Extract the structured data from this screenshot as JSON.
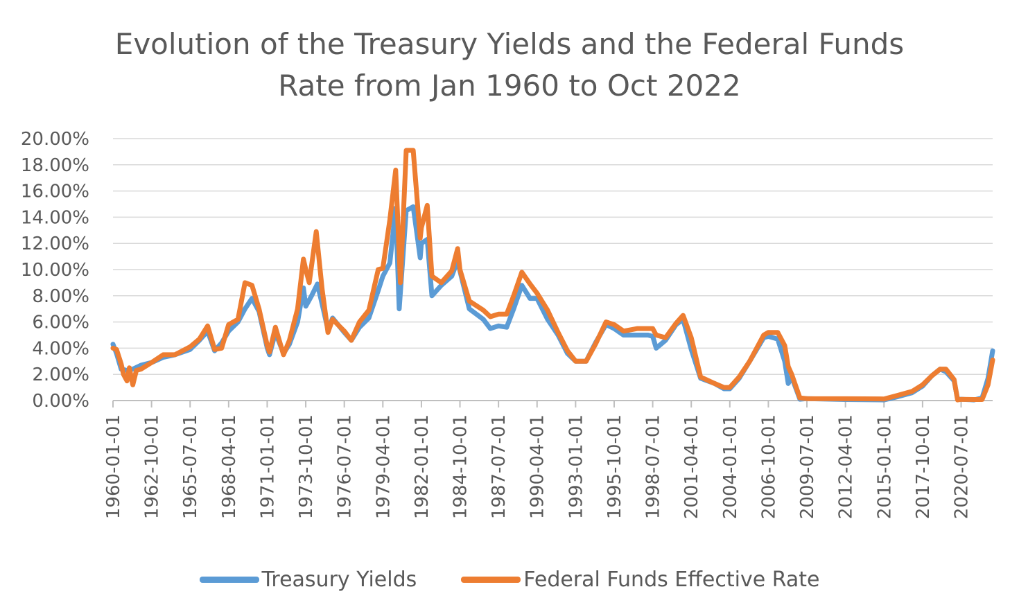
{
  "chart_data": {
    "type": "line",
    "title": "Evolution of the Treasury Yields and the Federal Funds Rate from Jan 1960 to Oct 2022",
    "title_lines": [
      "Evolution of the Treasury Yields and the Federal Funds",
      "Rate from Jan 1960 to Oct 2022"
    ],
    "xlabel": "",
    "ylabel": "",
    "ylim": [
      0,
      20
    ],
    "y_tick_labels": [
      "0.00%",
      "2.00%",
      "4.00%",
      "6.00%",
      "8.00%",
      "10.00%",
      "12.00%",
      "14.00%",
      "16.00%",
      "18.00%",
      "20.00%"
    ],
    "x_tick_labels": [
      "1960-01-01",
      "1962-10-01",
      "1965-07-01",
      "1968-04-01",
      "1971-01-01",
      "1973-10-01",
      "1976-07-01",
      "1979-04-01",
      "1982-01-01",
      "1984-10-01",
      "1987-07-01",
      "1990-04-01",
      "1993-01-01",
      "1995-10-01",
      "1998-07-01",
      "2001-04-01",
      "2004-01-01",
      "2006-10-01",
      "2009-07-01",
      "2012-04-01",
      "2015-01-01",
      "2017-10-01",
      "2020-07-01"
    ],
    "x_range": [
      "1960-01-01",
      "2022-10-01"
    ],
    "grid": "horizontal",
    "legend_position": "bottom",
    "series": [
      {
        "name": "Treasury Yields",
        "color": "#5B9BD5",
        "points": [
          [
            "1960-01-01",
            4.3
          ],
          [
            "1960-04-01",
            3.6
          ],
          [
            "1960-08-01",
            2.4
          ],
          [
            "1961-01-01",
            2.3
          ],
          [
            "1961-06-01",
            2.4
          ],
          [
            "1962-01-01",
            2.7
          ],
          [
            "1962-10-01",
            2.9
          ],
          [
            "1963-08-01",
            3.3
          ],
          [
            "1964-06-01",
            3.5
          ],
          [
            "1965-07-01",
            3.9
          ],
          [
            "1966-03-01",
            4.6
          ],
          [
            "1966-10-01",
            5.3
          ],
          [
            "1967-04-01",
            3.8
          ],
          [
            "1967-10-01",
            4.4
          ],
          [
            "1968-04-01",
            5.3
          ],
          [
            "1968-12-01",
            6.0
          ],
          [
            "1969-06-01",
            7.0
          ],
          [
            "1969-12-01",
            7.8
          ],
          [
            "1970-06-01",
            6.8
          ],
          [
            "1971-01-01",
            4.0
          ],
          [
            "1971-03-01",
            3.5
          ],
          [
            "1971-08-01",
            5.2
          ],
          [
            "1972-03-01",
            3.6
          ],
          [
            "1972-08-01",
            4.3
          ],
          [
            "1973-03-01",
            6.0
          ],
          [
            "1973-08-01",
            8.6
          ],
          [
            "1973-10-01",
            7.2
          ],
          [
            "1974-03-01",
            8.0
          ],
          [
            "1974-08-01",
            8.9
          ],
          [
            "1975-01-01",
            7.0
          ],
          [
            "1975-05-01",
            5.4
          ],
          [
            "1975-09-01",
            6.3
          ],
          [
            "1976-07-01",
            5.2
          ],
          [
            "1977-01-01",
            4.6
          ],
          [
            "1977-08-01",
            5.6
          ],
          [
            "1978-04-01",
            6.3
          ],
          [
            "1978-12-01",
            8.4
          ],
          [
            "1979-04-01",
            9.5
          ],
          [
            "1979-10-01",
            10.5
          ],
          [
            "1980-03-01",
            14.7
          ],
          [
            "1980-06-01",
            7.0
          ],
          [
            "1980-12-01",
            14.5
          ],
          [
            "1981-06-01",
            14.8
          ],
          [
            "1981-12-01",
            10.9
          ],
          [
            "1982-01-01",
            12.0
          ],
          [
            "1982-06-01",
            12.3
          ],
          [
            "1982-10-01",
            8.0
          ],
          [
            "1983-06-01",
            8.8
          ],
          [
            "1984-03-01",
            9.5
          ],
          [
            "1984-08-01",
            10.7
          ],
          [
            "1984-10-01",
            9.9
          ],
          [
            "1985-06-01",
            7.0
          ],
          [
            "1986-06-01",
            6.2
          ],
          [
            "1986-12-01",
            5.5
          ],
          [
            "1987-07-01",
            5.7
          ],
          [
            "1988-02-01",
            5.6
          ],
          [
            "1988-08-01",
            7.0
          ],
          [
            "1989-03-01",
            8.8
          ],
          [
            "1989-10-01",
            7.8
          ],
          [
            "1990-04-01",
            7.8
          ],
          [
            "1991-01-01",
            6.2
          ],
          [
            "1991-10-01",
            5.0
          ],
          [
            "1992-06-01",
            3.6
          ],
          [
            "1993-01-01",
            3.0
          ],
          [
            "1993-10-01",
            3.0
          ],
          [
            "1994-06-01",
            4.4
          ],
          [
            "1995-03-01",
            5.8
          ],
          [
            "1995-10-01",
            5.5
          ],
          [
            "1996-06-01",
            5.0
          ],
          [
            "1997-06-01",
            5.0
          ],
          [
            "1998-03-01",
            5.0
          ],
          [
            "1998-07-01",
            4.9
          ],
          [
            "1998-10-01",
            4.0
          ],
          [
            "1999-06-01",
            4.6
          ],
          [
            "2000-03-01",
            5.8
          ],
          [
            "2000-09-01",
            6.2
          ],
          [
            "2001-04-01",
            3.9
          ],
          [
            "2001-12-01",
            1.7
          ],
          [
            "2002-12-01",
            1.3
          ],
          [
            "2003-08-01",
            0.9
          ],
          [
            "2004-01-01",
            0.9
          ],
          [
            "2004-09-01",
            1.7
          ],
          [
            "2005-06-01",
            3.0
          ],
          [
            "2006-06-01",
            4.8
          ],
          [
            "2006-10-01",
            4.9
          ],
          [
            "2007-06-01",
            4.7
          ],
          [
            "2007-12-01",
            3.0
          ],
          [
            "2008-03-01",
            1.3
          ],
          [
            "2008-06-01",
            1.8
          ],
          [
            "2009-01-01",
            0.1
          ],
          [
            "2009-07-01",
            0.15
          ],
          [
            "2012-04-01",
            0.08
          ],
          [
            "2015-01-01",
            0.05
          ],
          [
            "2016-01-01",
            0.3
          ],
          [
            "2017-01-01",
            0.6
          ],
          [
            "2017-10-01",
            1.1
          ],
          [
            "2018-06-01",
            1.9
          ],
          [
            "2019-01-01",
            2.4
          ],
          [
            "2019-06-01",
            2.2
          ],
          [
            "2020-01-01",
            1.5
          ],
          [
            "2020-04-01",
            0.1
          ],
          [
            "2020-07-01",
            0.1
          ],
          [
            "2021-06-01",
            0.05
          ],
          [
            "2022-01-01",
            0.2
          ],
          [
            "2022-06-01",
            1.7
          ],
          [
            "2022-10-01",
            3.8
          ]
        ]
      },
      {
        "name": "Federal Funds Effective Rate",
        "color": "#ED7D31",
        "points": [
          [
            "1960-01-01",
            4.0
          ],
          [
            "1960-04-01",
            3.9
          ],
          [
            "1960-08-01",
            2.8
          ],
          [
            "1960-10-01",
            2.0
          ],
          [
            "1961-01-01",
            1.5
          ],
          [
            "1961-03-01",
            2.5
          ],
          [
            "1961-06-01",
            1.2
          ],
          [
            "1961-09-01",
            2.3
          ],
          [
            "1962-01-01",
            2.4
          ],
          [
            "1962-10-01",
            2.9
          ],
          [
            "1963-08-01",
            3.5
          ],
          [
            "1964-06-01",
            3.5
          ],
          [
            "1965-07-01",
            4.1
          ],
          [
            "1966-03-01",
            4.7
          ],
          [
            "1966-10-01",
            5.7
          ],
          [
            "1967-04-01",
            3.9
          ],
          [
            "1967-10-01",
            4.0
          ],
          [
            "1968-04-01",
            5.8
          ],
          [
            "1968-12-01",
            6.2
          ],
          [
            "1969-06-01",
            9.0
          ],
          [
            "1969-12-01",
            8.8
          ],
          [
            "1970-06-01",
            7.0
          ],
          [
            "1971-01-01",
            4.2
          ],
          [
            "1971-03-01",
            3.7
          ],
          [
            "1971-08-01",
            5.6
          ],
          [
            "1972-03-01",
            3.5
          ],
          [
            "1972-08-01",
            4.6
          ],
          [
            "1973-03-01",
            7.0
          ],
          [
            "1973-08-01",
            10.8
          ],
          [
            "1973-10-01",
            10.0
          ],
          [
            "1974-01-01",
            9.0
          ],
          [
            "1974-07-01",
            12.9
          ],
          [
            "1974-12-01",
            8.5
          ],
          [
            "1975-05-01",
            5.2
          ],
          [
            "1975-09-01",
            6.2
          ],
          [
            "1976-07-01",
            5.3
          ],
          [
            "1977-01-01",
            4.6
          ],
          [
            "1977-08-01",
            6.0
          ],
          [
            "1978-04-01",
            6.9
          ],
          [
            "1978-12-01",
            10.0
          ],
          [
            "1979-04-01",
            10.1
          ],
          [
            "1979-10-01",
            13.8
          ],
          [
            "1980-03-01",
            17.6
          ],
          [
            "1980-07-01",
            9.0
          ],
          [
            "1980-12-01",
            19.1
          ],
          [
            "1981-06-01",
            19.1
          ],
          [
            "1981-12-01",
            12.4
          ],
          [
            "1982-01-01",
            13.2
          ],
          [
            "1982-06-01",
            14.9
          ],
          [
            "1982-10-01",
            9.5
          ],
          [
            "1983-06-01",
            9.0
          ],
          [
            "1984-03-01",
            9.9
          ],
          [
            "1984-08-01",
            11.6
          ],
          [
            "1984-10-01",
            10.0
          ],
          [
            "1985-06-01",
            7.6
          ],
          [
            "1986-06-01",
            6.9
          ],
          [
            "1986-12-01",
            6.4
          ],
          [
            "1987-07-01",
            6.6
          ],
          [
            "1988-02-01",
            6.6
          ],
          [
            "1988-08-01",
            8.0
          ],
          [
            "1989-03-01",
            9.8
          ],
          [
            "1989-10-01",
            8.9
          ],
          [
            "1990-04-01",
            8.2
          ],
          [
            "1991-01-01",
            6.9
          ],
          [
            "1991-10-01",
            5.2
          ],
          [
            "1992-06-01",
            3.8
          ],
          [
            "1993-01-01",
            3.0
          ],
          [
            "1993-10-01",
            3.0
          ],
          [
            "1994-06-01",
            4.3
          ],
          [
            "1995-03-01",
            6.0
          ],
          [
            "1995-10-01",
            5.8
          ],
          [
            "1996-06-01",
            5.3
          ],
          [
            "1997-06-01",
            5.5
          ],
          [
            "1998-03-01",
            5.5
          ],
          [
            "1998-07-01",
            5.5
          ],
          [
            "1998-10-01",
            5.0
          ],
          [
            "1999-06-01",
            4.8
          ],
          [
            "2000-03-01",
            5.9
          ],
          [
            "2000-09-01",
            6.5
          ],
          [
            "2001-04-01",
            4.8
          ],
          [
            "2001-12-01",
            1.8
          ],
          [
            "2002-12-01",
            1.3
          ],
          [
            "2003-08-01",
            1.0
          ],
          [
            "2004-01-01",
            1.0
          ],
          [
            "2004-09-01",
            1.8
          ],
          [
            "2005-06-01",
            3.0
          ],
          [
            "2006-06-01",
            5.0
          ],
          [
            "2006-10-01",
            5.2
          ],
          [
            "2007-06-01",
            5.2
          ],
          [
            "2007-12-01",
            4.2
          ],
          [
            "2008-03-01",
            2.6
          ],
          [
            "2008-06-01",
            2.0
          ],
          [
            "2009-01-01",
            0.2
          ],
          [
            "2009-07-01",
            0.15
          ],
          [
            "2012-04-01",
            0.14
          ],
          [
            "2015-01-01",
            0.12
          ],
          [
            "2016-01-01",
            0.4
          ],
          [
            "2017-01-01",
            0.7
          ],
          [
            "2017-10-01",
            1.2
          ],
          [
            "2018-06-01",
            1.9
          ],
          [
            "2019-01-01",
            2.4
          ],
          [
            "2019-06-01",
            2.4
          ],
          [
            "2020-01-01",
            1.6
          ],
          [
            "2020-04-01",
            0.05
          ],
          [
            "2020-07-01",
            0.09
          ],
          [
            "2021-06-01",
            0.08
          ],
          [
            "2022-01-01",
            0.08
          ],
          [
            "2022-06-01",
            1.2
          ],
          [
            "2022-10-01",
            3.1
          ]
        ]
      }
    ]
  }
}
